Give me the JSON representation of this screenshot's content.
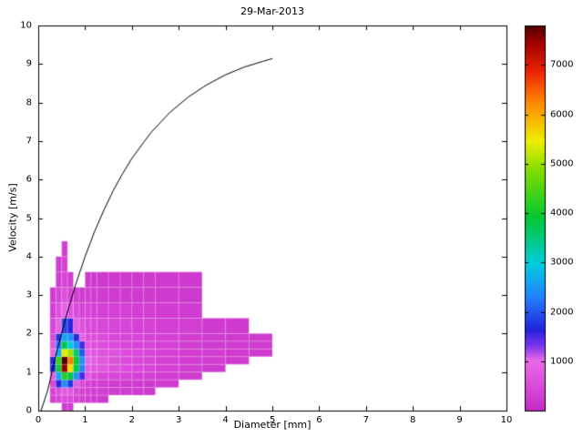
{
  "figure": {
    "background": "#ffffff"
  },
  "chart_data": {
    "type": "heatmap",
    "title": "29-Mar-2013",
    "xlabel": "Diameter [mm]",
    "ylabel": "Velocity [m/s]",
    "xlim": [
      0,
      10
    ],
    "ylim": [
      0,
      10
    ],
    "x_ticks": [
      0,
      1,
      2,
      3,
      4,
      5,
      6,
      7,
      8,
      9,
      10
    ],
    "y_ticks": [
      0,
      1,
      2,
      3,
      4,
      5,
      6,
      7,
      8,
      9,
      10
    ],
    "grid": false,
    "legend": "none",
    "colormap": {
      "vmax": 7800,
      "stops": [
        [
          0.0,
          "#C32BC3"
        ],
        [
          0.06,
          "#DA49DA"
        ],
        [
          0.13,
          "#E86AE8"
        ],
        [
          0.17,
          "#7733EE"
        ],
        [
          0.21,
          "#2222DD"
        ],
        [
          0.3,
          "#2288FF"
        ],
        [
          0.38,
          "#00CCDD"
        ],
        [
          0.5,
          "#00C834"
        ],
        [
          0.62,
          "#7FDC00"
        ],
        [
          0.7,
          "#EEEE00"
        ],
        [
          0.8,
          "#FF8800"
        ],
        [
          0.88,
          "#EE2200"
        ],
        [
          0.96,
          "#990000"
        ],
        [
          1.0,
          "#4C0000"
        ]
      ]
    },
    "colorbar": {
      "position": "right",
      "ticks": [
        1000,
        2000,
        3000,
        4000,
        5000,
        6000,
        7000
      ]
    },
    "heatmap": {
      "d_edges": [
        0.25,
        0.375,
        0.5,
        0.625,
        0.75,
        0.875,
        1.0,
        1.125,
        1.25,
        1.5,
        1.75,
        2.0,
        2.25,
        2.5,
        3.0,
        3.5,
        4.0,
        4.5,
        5.0
      ],
      "v_edges": [
        0.0,
        0.2,
        0.4,
        0.6,
        0.8,
        1.0,
        1.2,
        1.4,
        1.6,
        1.8,
        2.0,
        2.4,
        2.8,
        3.2,
        3.6,
        4.0,
        4.4
      ],
      "values": [
        [
          0,
          0,
          250,
          250,
          0,
          0,
          0,
          0,
          0,
          0,
          0,
          0,
          0,
          0,
          0,
          0,
          0,
          0
        ],
        [
          300,
          400,
          500,
          500,
          400,
          350,
          300,
          250,
          250,
          0,
          0,
          0,
          0,
          0,
          0,
          0,
          0,
          0
        ],
        [
          350,
          600,
          800,
          700,
          500,
          400,
          350,
          300,
          300,
          250,
          250,
          250,
          250,
          0,
          0,
          0,
          0,
          0
        ],
        [
          400,
          1600,
          2400,
          1800,
          800,
          500,
          350,
          300,
          300,
          280,
          260,
          250,
          250,
          250,
          0,
          0,
          0,
          0
        ],
        [
          900,
          2600,
          4200,
          3800,
          2400,
          1500,
          700,
          450,
          420,
          400,
          380,
          350,
          330,
          300,
          250,
          0,
          0,
          0
        ],
        [
          1700,
          4000,
          7500,
          5600,
          3800,
          2300,
          800,
          700,
          700,
          600,
          500,
          450,
          400,
          350,
          300,
          250,
          0,
          0
        ],
        [
          1600,
          4300,
          7800,
          6300,
          4000,
          2400,
          900,
          800,
          700,
          600,
          500,
          450,
          400,
          350,
          300,
          300,
          250,
          0
        ],
        [
          900,
          2700,
          5400,
          5000,
          3600,
          2000,
          800,
          700,
          650,
          600,
          500,
          450,
          400,
          350,
          300,
          300,
          250,
          250
        ],
        [
          700,
          2200,
          3800,
          3000,
          2400,
          1500,
          700,
          600,
          550,
          500,
          450,
          400,
          400,
          350,
          300,
          250,
          250,
          250
        ],
        [
          500,
          1800,
          2600,
          2400,
          1700,
          900,
          600,
          550,
          500,
          450,
          400,
          400,
          350,
          350,
          300,
          250,
          250,
          250
        ],
        [
          400,
          900,
          1900,
          1600,
          800,
          600,
          500,
          450,
          450,
          400,
          400,
          350,
          350,
          300,
          300,
          250,
          250,
          0
        ],
        [
          300,
          600,
          900,
          700,
          500,
          400,
          400,
          350,
          350,
          330,
          320,
          300,
          300,
          280,
          260,
          0,
          0,
          0
        ],
        [
          250,
          400,
          600,
          400,
          300,
          280,
          280,
          260,
          260,
          250,
          250,
          250,
          240,
          240,
          230,
          0,
          0,
          0
        ],
        [
          0,
          300,
          400,
          300,
          0,
          0,
          220,
          220,
          220,
          220,
          220,
          220,
          220,
          220,
          220,
          0,
          0,
          0
        ],
        [
          0,
          280,
          350,
          0,
          0,
          0,
          0,
          0,
          0,
          0,
          0,
          0,
          0,
          0,
          0,
          0,
          0,
          0
        ],
        [
          0,
          0,
          300,
          0,
          0,
          0,
          0,
          0,
          0,
          0,
          0,
          0,
          0,
          0,
          0,
          0,
          0,
          0
        ]
      ]
    },
    "curve": {
      "name": "terminal-velocity-curve",
      "color": "#000000",
      "points": [
        [
          0.06,
          0.0
        ],
        [
          0.2,
          0.52
        ],
        [
          0.4,
          1.55
        ],
        [
          0.6,
          2.46
        ],
        [
          0.8,
          3.28
        ],
        [
          1.0,
          4.0
        ],
        [
          1.2,
          4.64
        ],
        [
          1.4,
          5.2
        ],
        [
          1.6,
          5.71
        ],
        [
          1.8,
          6.15
        ],
        [
          2.0,
          6.55
        ],
        [
          2.4,
          7.21
        ],
        [
          2.8,
          7.73
        ],
        [
          3.2,
          8.14
        ],
        [
          3.6,
          8.46
        ],
        [
          4.0,
          8.72
        ],
        [
          4.4,
          8.92
        ],
        [
          4.8,
          9.07
        ],
        [
          5.0,
          9.14
        ]
      ]
    }
  }
}
